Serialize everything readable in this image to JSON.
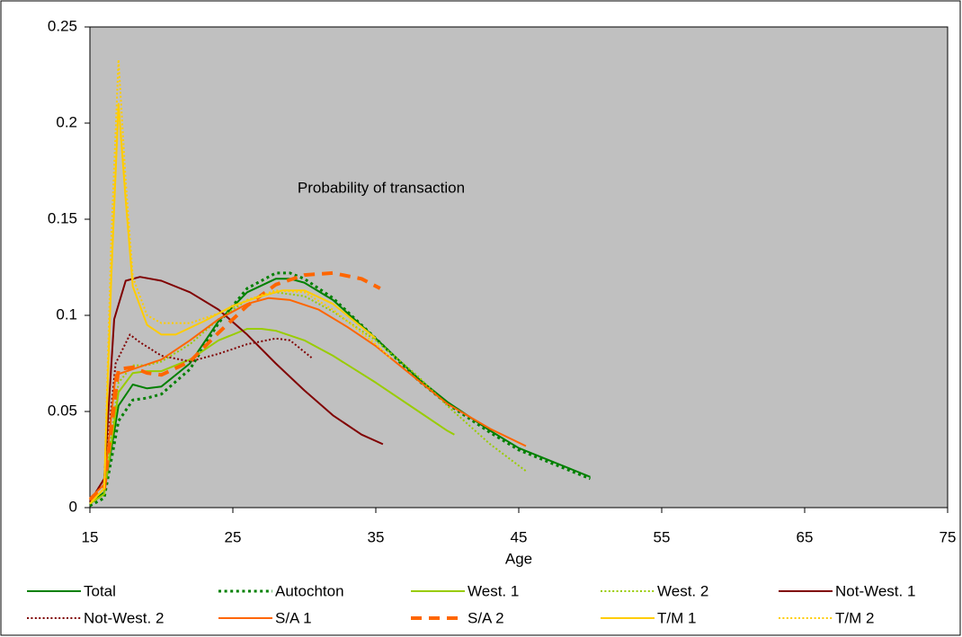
{
  "chart_data": {
    "type": "line",
    "annotation": "Probability of transaction",
    "x_label": "Age",
    "xlim": [
      15,
      75
    ],
    "xticks": [
      15,
      25,
      35,
      45,
      55,
      65,
      75
    ],
    "ylim": [
      0,
      0.25
    ],
    "yticks": [
      0,
      0.05,
      0.1,
      0.15,
      0.2,
      0.25
    ],
    "grid": false,
    "legend": "bottom",
    "plot_background": "#c0c0c0",
    "series": [
      {
        "name": "Total",
        "color": "#008000",
        "dash": "solid",
        "width": 2,
        "x": [
          15,
          16,
          17,
          18,
          19,
          20,
          22,
          24,
          26,
          28,
          29,
          30,
          32,
          35,
          38,
          40,
          43,
          45,
          48,
          50
        ],
        "values": [
          0.002,
          0.008,
          0.053,
          0.064,
          0.062,
          0.063,
          0.075,
          0.097,
          0.112,
          0.119,
          0.119,
          0.117,
          0.108,
          0.088,
          0.067,
          0.055,
          0.04,
          0.031,
          0.022,
          0.016
        ]
      },
      {
        "name": "Autochton",
        "color": "#008000",
        "dash": "dotted",
        "width": 3,
        "x": [
          15,
          16,
          17,
          18,
          19,
          20,
          22,
          24,
          26,
          28,
          29,
          30,
          32,
          35,
          38,
          40,
          43,
          45,
          48,
          50
        ],
        "values": [
          0.001,
          0.005,
          0.045,
          0.056,
          0.057,
          0.059,
          0.072,
          0.096,
          0.114,
          0.122,
          0.122,
          0.119,
          0.109,
          0.088,
          0.066,
          0.054,
          0.039,
          0.03,
          0.021,
          0.015
        ]
      },
      {
        "name": "West. 1",
        "color": "#99cc00",
        "dash": "solid",
        "width": 2,
        "x": [
          15,
          16,
          17,
          18,
          19,
          20,
          22,
          24,
          26,
          27,
          28,
          30,
          32,
          35,
          38,
          40,
          40.5
        ],
        "values": [
          0.002,
          0.007,
          0.06,
          0.07,
          0.071,
          0.071,
          0.077,
          0.087,
          0.093,
          0.093,
          0.092,
          0.087,
          0.079,
          0.065,
          0.05,
          0.04,
          0.038
        ]
      },
      {
        "name": "West. 2",
        "color": "#99cc00",
        "dash": "dotted",
        "width": 2,
        "x": [
          15,
          16,
          17,
          18,
          19,
          20,
          22,
          24,
          26,
          28,
          30,
          32,
          35,
          38,
          40,
          43,
          45.5
        ],
        "values": [
          0.002,
          0.01,
          0.065,
          0.074,
          0.074,
          0.076,
          0.085,
          0.098,
          0.108,
          0.112,
          0.11,
          0.102,
          0.087,
          0.068,
          0.053,
          0.033,
          0.019
        ]
      },
      {
        "name": "Not-West. 1",
        "color": "#800000",
        "dash": "solid",
        "width": 2,
        "x": [
          15,
          16,
          16.7,
          17.5,
          18.5,
          20,
          22,
          24,
          26,
          28,
          30,
          32,
          34,
          35.5
        ],
        "values": [
          0.003,
          0.015,
          0.098,
          0.118,
          0.12,
          0.118,
          0.112,
          0.103,
          0.09,
          0.075,
          0.061,
          0.048,
          0.038,
          0.033
        ]
      },
      {
        "name": "Not-West. 2",
        "color": "#800000",
        "dash": "dotted",
        "width": 2,
        "x": [
          15,
          16,
          16.8,
          17.8,
          18.5,
          20,
          22,
          24,
          26,
          28,
          29,
          30.5
        ],
        "values": [
          0.003,
          0.015,
          0.075,
          0.09,
          0.086,
          0.079,
          0.076,
          0.08,
          0.085,
          0.088,
          0.087,
          0.078
        ]
      },
      {
        "name": "S/A 1",
        "color": "#ff6600",
        "dash": "solid",
        "width": 2,
        "x": [
          15,
          16,
          16.8,
          18,
          20,
          22,
          24,
          26,
          27.5,
          29,
          31,
          33,
          35,
          38,
          40,
          43,
          45.5
        ],
        "values": [
          0.005,
          0.012,
          0.069,
          0.072,
          0.077,
          0.087,
          0.098,
          0.106,
          0.109,
          0.108,
          0.103,
          0.094,
          0.084,
          0.066,
          0.054,
          0.041,
          0.032
        ]
      },
      {
        "name": "S/A 2",
        "color": "#ff6600",
        "dash": "dashed",
        "width": 4,
        "x": [
          15,
          16,
          17,
          18,
          19,
          20,
          22,
          24,
          26,
          28,
          30,
          32,
          34,
          35.3
        ],
        "values": [
          0.004,
          0.01,
          0.072,
          0.073,
          0.07,
          0.069,
          0.076,
          0.091,
          0.105,
          0.116,
          0.121,
          0.122,
          0.119,
          0.114
        ]
      },
      {
        "name": "T/M 1",
        "color": "#ffcc00",
        "dash": "solid",
        "width": 2,
        "x": [
          15,
          16,
          16.5,
          17,
          17.5,
          18,
          19,
          20,
          21,
          23,
          25,
          27,
          28.5,
          30,
          32,
          35
        ],
        "values": [
          0.002,
          0.01,
          0.12,
          0.21,
          0.16,
          0.115,
          0.095,
          0.09,
          0.09,
          0.097,
          0.105,
          0.11,
          0.113,
          0.113,
          0.106,
          0.088
        ]
      },
      {
        "name": "T/M 2",
        "color": "#ffcc00",
        "dash": "dotted",
        "width": 2,
        "x": [
          15,
          16,
          16.5,
          17,
          17.5,
          18,
          19,
          20,
          22,
          24,
          26,
          28,
          30,
          32,
          35,
          36
        ],
        "values": [
          0.002,
          0.01,
          0.14,
          0.233,
          0.17,
          0.12,
          0.1,
          0.096,
          0.096,
          0.101,
          0.108,
          0.113,
          0.112,
          0.103,
          0.085,
          0.078
        ]
      }
    ]
  }
}
